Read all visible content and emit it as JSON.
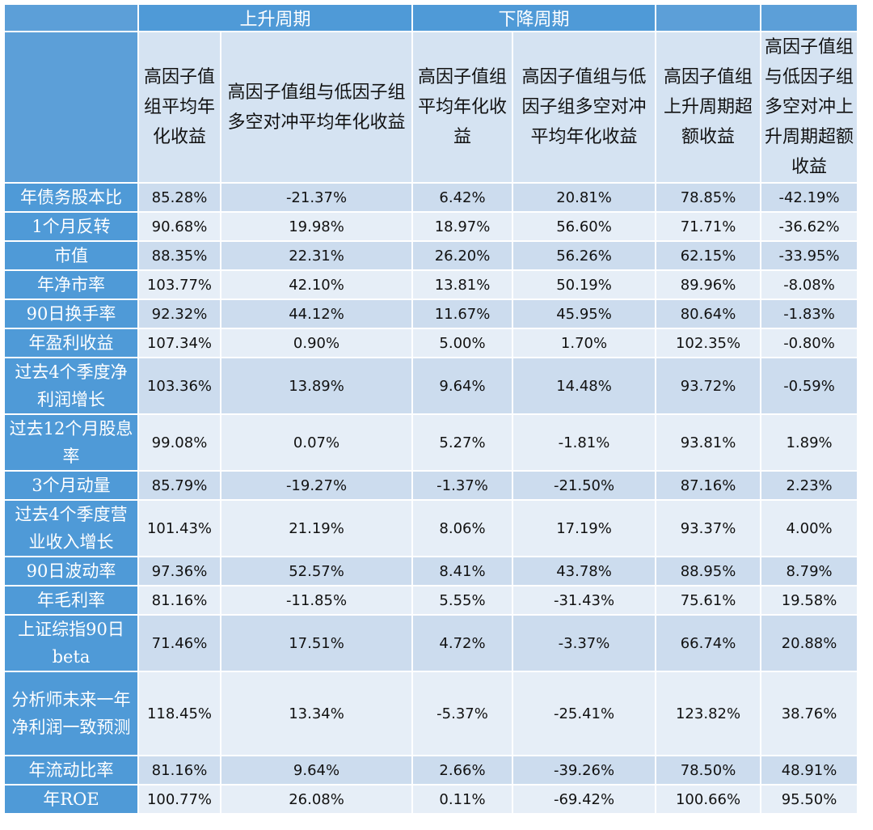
{
  "chart_data": {
    "type": "table",
    "group_headers": [
      "上升周期",
      "下降周期"
    ],
    "column_headers": [
      "高因子值组平均年化收益",
      "高因子值组与低因子组多空对冲平均年化收益",
      "高因子值组平均年化收益",
      "高因子值组与低因子组多空对冲平均年化收益",
      "高因子值组上升周期超额收益",
      "高因子值组与低因子组多空对冲上升周期超额收益"
    ],
    "rows": [
      {
        "name": "年债务股本比",
        "values": [
          "85.28%",
          "-21.37%",
          "6.42%",
          "20.81%",
          "78.85%",
          "-42.19%"
        ]
      },
      {
        "name": "1个月反转",
        "values": [
          "90.68%",
          "19.98%",
          "18.97%",
          "56.60%",
          "71.71%",
          "-36.62%"
        ]
      },
      {
        "name": "市值",
        "values": [
          "88.35%",
          "22.31%",
          "26.20%",
          "56.26%",
          "62.15%",
          "-33.95%"
        ]
      },
      {
        "name": "年净市率",
        "values": [
          "103.77%",
          "42.10%",
          "13.81%",
          "50.19%",
          "89.96%",
          "-8.08%"
        ]
      },
      {
        "name": "90日换手率",
        "values": [
          "92.32%",
          "44.12%",
          "11.67%",
          "45.95%",
          "80.64%",
          "-1.83%"
        ]
      },
      {
        "name": "年盈利收益",
        "values": [
          "107.34%",
          "0.90%",
          "5.00%",
          "1.70%",
          "102.35%",
          "-0.80%"
        ]
      },
      {
        "name": "过去4个季度净利润增长",
        "values": [
          "103.36%",
          "13.89%",
          "9.64%",
          "14.48%",
          "93.72%",
          "-0.59%"
        ]
      },
      {
        "name": "过去12个月股息率",
        "values": [
          "99.08%",
          "0.07%",
          "5.27%",
          "-1.81%",
          "93.81%",
          "1.89%"
        ]
      },
      {
        "name": "3个月动量",
        "values": [
          "85.79%",
          "-19.27%",
          "-1.37%",
          "-21.50%",
          "87.16%",
          "2.23%"
        ]
      },
      {
        "name": "过去4个季度营业收入增长",
        "values": [
          "101.43%",
          "21.19%",
          "8.06%",
          "17.19%",
          "93.37%",
          "4.00%"
        ]
      },
      {
        "name": "90日波动率",
        "values": [
          "97.36%",
          "52.57%",
          "8.41%",
          "43.78%",
          "88.95%",
          "8.79%"
        ]
      },
      {
        "name": "年毛利率",
        "values": [
          "81.16%",
          "-11.85%",
          "5.55%",
          "-31.43%",
          "75.61%",
          "19.58%"
        ]
      },
      {
        "name": "上证综指90日beta",
        "values": [
          "71.46%",
          "17.51%",
          "4.72%",
          "-3.37%",
          "66.74%",
          "20.88%"
        ]
      },
      {
        "name": "分析师未来一年净利润一致预测",
        "values": [
          "118.45%",
          "13.34%",
          "-5.37%",
          "-25.41%",
          "123.82%",
          "38.76%"
        ]
      },
      {
        "name": "年流动比率",
        "values": [
          "81.16%",
          "9.64%",
          "2.66%",
          "-39.26%",
          "78.50%",
          "48.91%"
        ]
      },
      {
        "name": "年ROE",
        "values": [
          "100.77%",
          "26.08%",
          "0.11%",
          "-69.42%",
          "100.66%",
          "95.50%"
        ]
      }
    ]
  }
}
